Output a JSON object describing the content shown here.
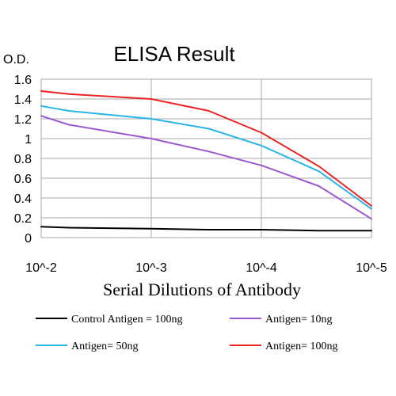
{
  "chart_data": {
    "type": "line",
    "title": "ELISA Result",
    "ylabel": "O.D.",
    "xlabel": "Serial Dilutions of Antibody",
    "x_tick_labels": [
      "10^-2",
      "10^-3",
      "10^-4",
      "10^-5"
    ],
    "y_ticks": [
      0,
      0.2,
      0.4,
      0.6,
      0.8,
      1,
      1.2,
      1.4,
      1.6
    ],
    "y_tick_labels": [
      "0",
      "0.2",
      "0.4",
      "0.6",
      "0.8",
      "1",
      "1.2",
      "1.4",
      "1.6"
    ],
    "ylim": [
      0,
      1.6
    ],
    "x_scale": "log (dilution)",
    "grid": true,
    "legend_position": "bottom",
    "x": [
      0.01,
      0.0056,
      0.001,
      0.0003,
      0.0001,
      3e-05,
      1e-05
    ],
    "series": [
      {
        "name": "Control Antigen = 100ng",
        "color": "#000000",
        "values": [
          0.11,
          0.1,
          0.09,
          0.08,
          0.08,
          0.07,
          0.07
        ]
      },
      {
        "name": "Antigen= 10ng",
        "color": "#9b59d0",
        "values": [
          1.23,
          1.14,
          1.0,
          0.87,
          0.73,
          0.52,
          0.19
        ]
      },
      {
        "name": "Antigen= 50ng",
        "color": "#29b5e8",
        "values": [
          1.33,
          1.28,
          1.2,
          1.1,
          0.93,
          0.67,
          0.29
        ]
      },
      {
        "name": "Antigen= 100ng",
        "color": "#ee2222",
        "values": [
          1.48,
          1.45,
          1.4,
          1.28,
          1.06,
          0.72,
          0.32
        ]
      }
    ]
  }
}
